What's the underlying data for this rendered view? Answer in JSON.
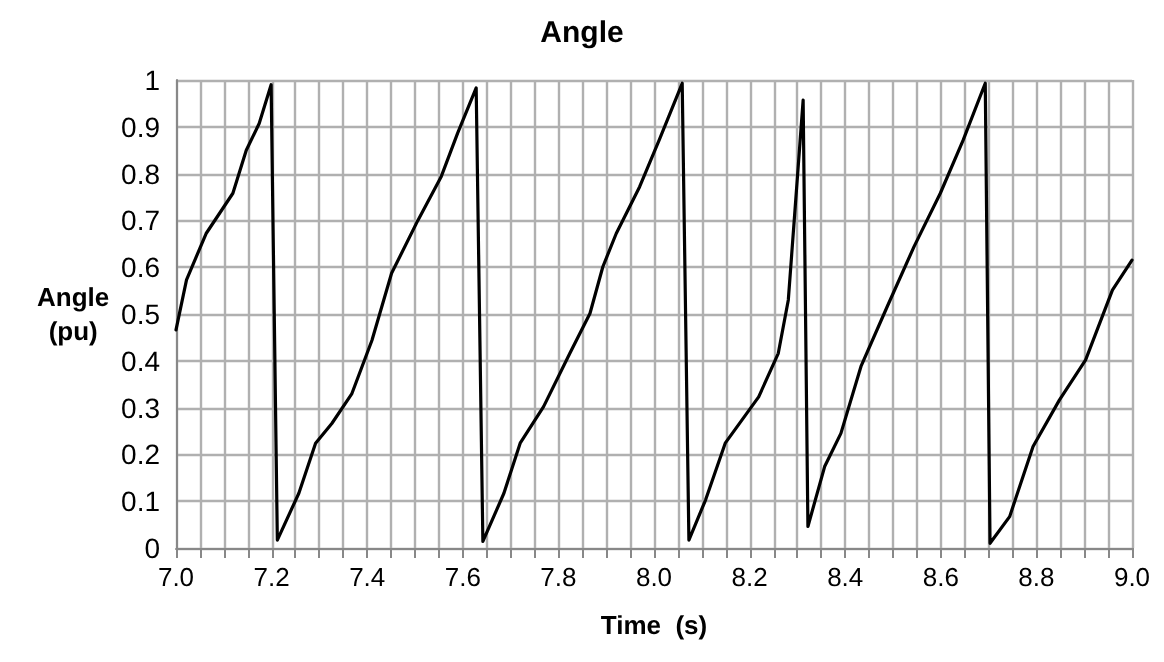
{
  "chart_data": {
    "type": "line",
    "title": "Angle",
    "xlabel": "Time  (s)",
    "ylabel": "Angle\n(pu)",
    "grid": true,
    "marker": "none",
    "line_style": "solid",
    "xlim": [
      7.0,
      9.0
    ],
    "ylim": [
      0,
      1
    ],
    "xticks": [
      {
        "value": 7.0,
        "label": "7.0"
      },
      {
        "value": 7.05,
        "label": null
      },
      {
        "value": 7.1,
        "label": null
      },
      {
        "value": 7.15,
        "label": null
      },
      {
        "value": 7.2,
        "label": "7.2"
      },
      {
        "value": 7.25,
        "label": null
      },
      {
        "value": 7.3,
        "label": null
      },
      {
        "value": 7.35,
        "label": null
      },
      {
        "value": 7.4,
        "label": "7.4"
      },
      {
        "value": 7.45,
        "label": null
      },
      {
        "value": 7.5,
        "label": null
      },
      {
        "value": 7.55,
        "label": null
      },
      {
        "value": 7.6,
        "label": "7.6"
      },
      {
        "value": 7.65,
        "label": null
      },
      {
        "value": 7.7,
        "label": null
      },
      {
        "value": 7.75,
        "label": null
      },
      {
        "value": 7.8,
        "label": "7.8"
      },
      {
        "value": 7.85,
        "label": null
      },
      {
        "value": 7.9,
        "label": null
      },
      {
        "value": 7.95,
        "label": null
      },
      {
        "value": 8.0,
        "label": "8.0"
      },
      {
        "value": 8.05,
        "label": null
      },
      {
        "value": 8.1,
        "label": null
      },
      {
        "value": 8.15,
        "label": null
      },
      {
        "value": 8.2,
        "label": "8.2"
      },
      {
        "value": 8.25,
        "label": null
      },
      {
        "value": 8.3,
        "label": null
      },
      {
        "value": 8.35,
        "label": null
      },
      {
        "value": 8.4,
        "label": "8.4"
      },
      {
        "value": 8.45,
        "label": null
      },
      {
        "value": 8.5,
        "label": null
      },
      {
        "value": 8.55,
        "label": null
      },
      {
        "value": 8.6,
        "label": "8.6"
      },
      {
        "value": 8.65,
        "label": null
      },
      {
        "value": 8.7,
        "label": null
      },
      {
        "value": 8.75,
        "label": null
      },
      {
        "value": 8.8,
        "label": "8.8"
      },
      {
        "value": 8.85,
        "label": null
      },
      {
        "value": 8.9,
        "label": null
      },
      {
        "value": 8.95,
        "label": null
      },
      {
        "value": 9.0,
        "label": "9.0"
      }
    ],
    "yticks": [
      0,
      0.1,
      0.2,
      0.3,
      0.4,
      0.5,
      0.6,
      0.7,
      0.8,
      0.9,
      1
    ],
    "series": [
      {
        "color": "#000000",
        "x": [
          7.0,
          7.022,
          7.063,
          7.119,
          7.147,
          7.174,
          7.199,
          7.212,
          7.257,
          7.292,
          7.326,
          7.368,
          7.41,
          7.451,
          7.506,
          7.555,
          7.589,
          7.628,
          7.642,
          7.686,
          7.72,
          7.769,
          7.824,
          7.866,
          7.893,
          7.921,
          7.97,
          8.011,
          8.059,
          8.073,
          8.108,
          8.149,
          8.219,
          8.26,
          8.281,
          8.312,
          8.322,
          8.357,
          8.391,
          8.433,
          8.488,
          8.544,
          8.599,
          8.647,
          8.693,
          8.703,
          8.744,
          8.793,
          8.848,
          8.903,
          8.959,
          9.0
        ],
        "values": [
          0.466,
          0.573,
          0.672,
          0.758,
          0.85,
          0.907,
          0.99,
          0.017,
          0.117,
          0.224,
          0.266,
          0.33,
          0.444,
          0.587,
          0.7,
          0.794,
          0.886,
          0.983,
          0.014,
          0.117,
          0.224,
          0.302,
          0.416,
          0.501,
          0.601,
          0.672,
          0.772,
          0.872,
          0.993,
          0.017,
          0.103,
          0.224,
          0.323,
          0.416,
          0.53,
          0.957,
          0.046,
          0.174,
          0.245,
          0.388,
          0.516,
          0.644,
          0.758,
          0.872,
          0.993,
          0.01,
          0.067,
          0.217,
          0.316,
          0.402,
          0.551,
          0.615
        ]
      }
    ]
  }
}
